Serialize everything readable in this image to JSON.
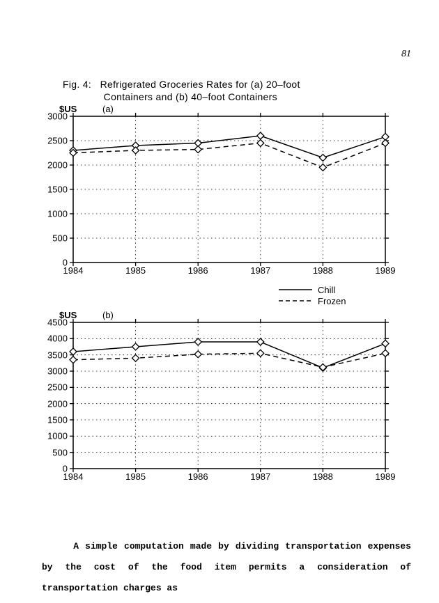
{
  "page_number": "81",
  "figure": {
    "label": "Fig. 4:",
    "title_line1": "Refrigerated Groceries Rates for (a) 20–foot",
    "title_line2": "Containers and (b) 40–foot Containers"
  },
  "axis_unit": "$US",
  "chart_a": {
    "subplot_label": "(a)",
    "type": "line",
    "x_labels": [
      "1984",
      "1985",
      "1986",
      "1987",
      "1988",
      "1989"
    ],
    "ylim": [
      0,
      3000
    ],
    "ytick_step": 500,
    "y_ticks": [
      0,
      500,
      1000,
      1500,
      2000,
      2500,
      3000
    ],
    "series": [
      {
        "name": "Chill",
        "style": "solid",
        "marker": "diamond",
        "values": [
          2300,
          2400,
          2450,
          2600,
          2150,
          2580
        ]
      },
      {
        "name": "Frozen",
        "style": "dashed",
        "marker": "diamond",
        "values": [
          2250,
          2300,
          2320,
          2450,
          1950,
          2450
        ]
      }
    ],
    "grid_color": "#000000",
    "line_width": 1.5,
    "marker_size": 5,
    "background_color": "#ffffff"
  },
  "chart_b": {
    "subplot_label": "(b)",
    "type": "line",
    "x_labels": [
      "1984",
      "1985",
      "1986",
      "1987",
      "1988",
      "1989"
    ],
    "ylim": [
      0,
      4500
    ],
    "ytick_step": 500,
    "y_ticks": [
      0,
      500,
      1000,
      1500,
      2000,
      2500,
      3000,
      3500,
      4000,
      4500
    ],
    "series": [
      {
        "name": "Chill",
        "style": "solid",
        "marker": "diamond",
        "values": [
          3600,
          3750,
          3900,
          3900,
          3100,
          3850
        ]
      },
      {
        "name": "Frozen",
        "style": "dashed",
        "marker": "diamond",
        "values": [
          3350,
          3400,
          3520,
          3550,
          3120,
          3550
        ]
      }
    ],
    "grid_color": "#000000",
    "line_width": 1.5,
    "marker_size": 5,
    "background_color": "#ffffff"
  },
  "legend": {
    "items": [
      {
        "label": "Chill",
        "style": "solid"
      },
      {
        "label": "Frozen",
        "style": "dashed"
      }
    ]
  },
  "body_paragraph": "A simple computation made by dividing transportation expenses by the cost of the food item permits a consideration of transportation charges as",
  "colors": {
    "ink": "#000000",
    "paper": "#ffffff"
  }
}
